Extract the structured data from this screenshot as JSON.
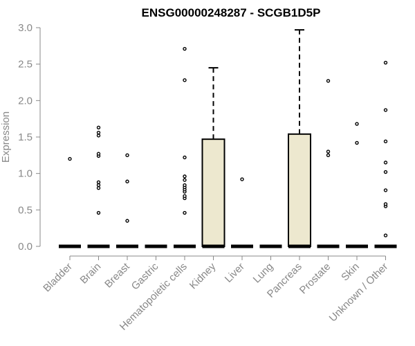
{
  "chart_data": {
    "type": "box",
    "title": "ENSG00000248287 - SCGB1D5P",
    "ylabel": "Expression",
    "xlabel": "",
    "ylim": [
      0,
      3.0
    ],
    "yticks": [
      "0.0",
      "0.5",
      "1.0",
      "1.5",
      "2.0",
      "2.5",
      "3.0"
    ],
    "grid": false,
    "colors": {
      "box_fill": "#ede8cf",
      "stroke": "#000000",
      "axis": "#888888",
      "text": "#888888"
    },
    "categories": [
      "Bladder",
      "Brain",
      "Breast",
      "Gastric",
      "Hematopoietic cells",
      "Kidney",
      "Liver",
      "Lung",
      "Pancreas",
      "Prostate",
      "Skin",
      "Unknown / Other"
    ],
    "boxes": [
      {
        "q1": 0,
        "median": 0,
        "q3": 0,
        "whisker_low": 0,
        "whisker_high": 0,
        "outliers": [
          1.2
        ]
      },
      {
        "q1": 0,
        "median": 0,
        "q3": 0,
        "whisker_low": 0,
        "whisker_high": 0,
        "outliers": [
          0.46,
          0.8,
          0.84,
          0.88,
          1.24,
          1.27,
          1.52,
          1.56,
          1.63
        ]
      },
      {
        "q1": 0,
        "median": 0,
        "q3": 0,
        "whisker_low": 0,
        "whisker_high": 0,
        "outliers": [
          0.35,
          0.89,
          1.25
        ]
      },
      {
        "q1": 0,
        "median": 0,
        "q3": 0,
        "whisker_low": 0,
        "whisker_high": 0,
        "outliers": []
      },
      {
        "q1": 0,
        "median": 0,
        "q3": 0,
        "whisker_low": 0,
        "whisker_high": 0,
        "outliers": [
          0.46,
          0.66,
          0.69,
          0.75,
          0.78,
          0.81,
          0.84,
          0.91,
          0.96,
          1.22,
          2.28,
          2.71
        ]
      },
      {
        "q1": 0,
        "median": 0,
        "q3": 1.47,
        "whisker_low": 0,
        "whisker_high": 2.45,
        "outliers": []
      },
      {
        "q1": 0,
        "median": 0,
        "q3": 0,
        "whisker_low": 0,
        "whisker_high": 0,
        "outliers": [
          0.92
        ]
      },
      {
        "q1": 0,
        "median": 0,
        "q3": 0,
        "whisker_low": 0,
        "whisker_high": 0,
        "outliers": []
      },
      {
        "q1": 0,
        "median": 0,
        "q3": 1.54,
        "whisker_low": 0,
        "whisker_high": 2.97,
        "outliers": []
      },
      {
        "q1": 0,
        "median": 0,
        "q3": 0,
        "whisker_low": 0,
        "whisker_high": 0,
        "outliers": [
          1.25,
          1.3,
          2.27
        ]
      },
      {
        "q1": 0,
        "median": 0,
        "q3": 0,
        "whisker_low": 0,
        "whisker_high": 0,
        "outliers": [
          1.42,
          1.68
        ]
      },
      {
        "q1": 0,
        "median": 0,
        "q3": 0,
        "whisker_low": 0,
        "whisker_high": 0,
        "outliers": [
          0.15,
          0.55,
          0.58,
          0.77,
          1.02,
          1.15,
          1.44,
          1.87,
          2.52
        ]
      }
    ]
  }
}
